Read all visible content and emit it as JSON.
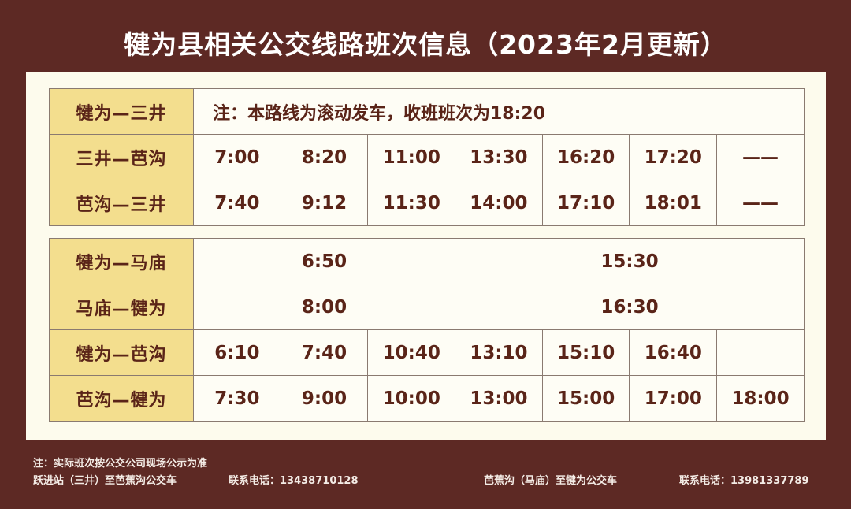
{
  "title": "犍为县相关公交线路班次信息（2023年2月更新）",
  "table1": {
    "rows": [
      {
        "route": "犍为—三井",
        "note": "注：本路线为滚动发车，收班班次为18:20"
      },
      {
        "route": "三井—芭沟",
        "times": [
          "7:00",
          "8:20",
          "11:00",
          "13:30",
          "16:20",
          "17:20",
          "——"
        ]
      },
      {
        "route": "芭沟—三井",
        "times": [
          "7:40",
          "9:12",
          "11:30",
          "14:00",
          "17:10",
          "18:01",
          "——"
        ]
      }
    ]
  },
  "table2": {
    "rows": [
      {
        "route": "犍为—马庙",
        "times": [
          "6:50",
          "15:30"
        ]
      },
      {
        "route": "马庙—犍为",
        "times": [
          "8:00",
          "16:30"
        ]
      },
      {
        "route": "犍为—芭沟",
        "times": [
          "6:10",
          "7:40",
          "10:40",
          "13:10",
          "15:10",
          "16:40",
          ""
        ]
      },
      {
        "route": "芭沟—犍为",
        "times": [
          "7:30",
          "9:00",
          "10:00",
          "13:00",
          "15:00",
          "17:00",
          "18:00"
        ]
      }
    ]
  },
  "footer": {
    "note": "注：实际班次按公交公司现场公示为准",
    "left_route": "跃进站（三井）至芭蕉沟公交车",
    "left_phone": "联系电话：13438710128",
    "right_route": "芭蕉沟（马庙）至犍为公交车",
    "right_phone": "联系电话：13981337789"
  },
  "colors": {
    "background": "#5d2924",
    "panel": "#fdfbed",
    "label_cell": "#f3de8e",
    "text": "#5a2418"
  }
}
